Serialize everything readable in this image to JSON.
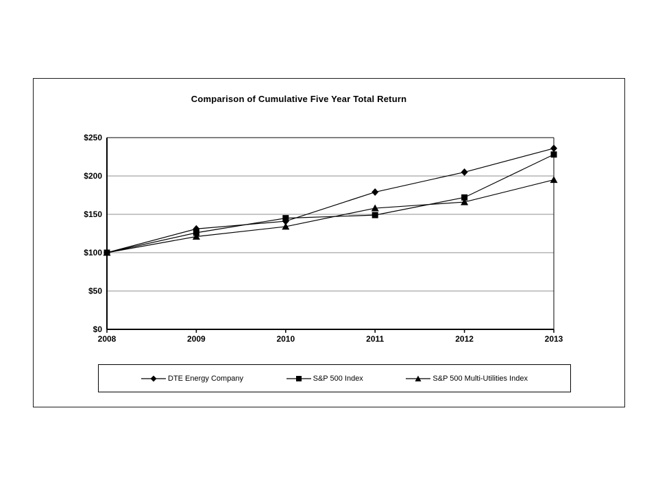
{
  "chart_data": {
    "type": "line",
    "title": "Comparison of Cumulative Five Year Total Return",
    "x": [
      "2008",
      "2009",
      "2010",
      "2011",
      "2012",
      "2013"
    ],
    "series": [
      {
        "name": "DTE Energy Company",
        "marker": "diamond",
        "color": "#000000",
        "values": [
          100,
          131,
          141,
          179,
          205,
          236
        ]
      },
      {
        "name": "S&P 500 Index",
        "marker": "square",
        "color": "#000000",
        "values": [
          100,
          126,
          145,
          149,
          172,
          228
        ]
      },
      {
        "name": "S&P 500 Multi-Utilities Index",
        "marker": "triangle",
        "color": "#000000",
        "values": [
          100,
          121,
          134,
          158,
          166,
          195
        ]
      }
    ],
    "ylim": [
      0,
      250
    ],
    "yticks": [
      {
        "value": 0,
        "label": "$0"
      },
      {
        "value": 50,
        "label": "$50"
      },
      {
        "value": 100,
        "label": "$100"
      },
      {
        "value": 150,
        "label": "$150"
      },
      {
        "value": 200,
        "label": "$200"
      },
      {
        "value": 250,
        "label": "$250"
      }
    ],
    "grid": true,
    "gridline_color": "#8c8c8c",
    "axis_color": "#000000",
    "legend_position": "bottom"
  }
}
